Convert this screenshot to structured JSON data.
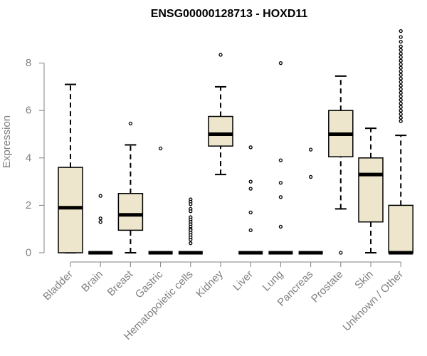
{
  "chart_data": {
    "type": "boxplot",
    "title": "ENSG00000128713 - HOXD11",
    "xlabel": "",
    "ylabel": "Expression",
    "ylim": [
      0,
      9.4
    ],
    "yticks": [
      0,
      2,
      4,
      6,
      8
    ],
    "box_fill": "#ede6cc",
    "categories": [
      "Bladder",
      "Brain",
      "Breast",
      "Gastric",
      "Hematopoietic cells",
      "Kidney",
      "Liver",
      "Lung",
      "Pancreas",
      "Prostate",
      "Skin",
      "Unknown / Other"
    ],
    "boxes": [
      {
        "name": "Bladder",
        "min": 0,
        "q1": 0,
        "median": 1.9,
        "q3": 3.6,
        "max": 7.1,
        "outliers": []
      },
      {
        "name": "Brain",
        "min": 0,
        "q1": 0,
        "median": 0,
        "q3": 0,
        "max": 0,
        "outliers": [
          2.4,
          1.45,
          1.3
        ]
      },
      {
        "name": "Breast",
        "min": 0,
        "q1": 0.95,
        "median": 1.6,
        "q3": 2.5,
        "max": 4.55,
        "outliers": [
          5.45
        ]
      },
      {
        "name": "Gastric",
        "min": 0,
        "q1": 0,
        "median": 0,
        "q3": 0,
        "max": 0,
        "outliers": [
          4.4
        ]
      },
      {
        "name": "Hematopoietic cells",
        "min": 0,
        "q1": 0,
        "median": 0,
        "q3": 0,
        "max": 0,
        "outliers": [
          2.25,
          2.15,
          2.05,
          1.85,
          1.75,
          1.5,
          1.4,
          1.3,
          1.2,
          1.1,
          1.0,
          0.95,
          0.85,
          0.75,
          0.65,
          0.55,
          0.4
        ]
      },
      {
        "name": "Kidney",
        "min": 3.3,
        "q1": 4.5,
        "median": 5.0,
        "q3": 5.75,
        "max": 7.0,
        "outliers": [
          8.35
        ]
      },
      {
        "name": "Liver",
        "min": 0,
        "q1": 0,
        "median": 0,
        "q3": 0,
        "max": 0,
        "outliers": [
          4.45,
          3.0,
          2.7,
          1.7,
          0.95
        ]
      },
      {
        "name": "Lung",
        "min": 0,
        "q1": 0,
        "median": 0,
        "q3": 0,
        "max": 0,
        "outliers": [
          8.0,
          3.9,
          2.95,
          2.35,
          1.1
        ]
      },
      {
        "name": "Pancreas",
        "min": 0,
        "q1": 0,
        "median": 0,
        "q3": 0,
        "max": 0,
        "outliers": [
          4.35,
          3.2
        ]
      },
      {
        "name": "Prostate",
        "min": 1.85,
        "q1": 4.05,
        "median": 5.0,
        "q3": 6.0,
        "max": 7.45,
        "outliers": [
          0
        ]
      },
      {
        "name": "Skin",
        "min": 0,
        "q1": 1.3,
        "median": 3.3,
        "q3": 4.0,
        "max": 5.25,
        "outliers": []
      },
      {
        "name": "Unknown / Other",
        "min": 0,
        "q1": 0,
        "median": 0,
        "q3": 2.0,
        "max": 4.95,
        "outliers": [
          9.35,
          9.1,
          8.9,
          8.7,
          8.55,
          8.4,
          8.25,
          8.1,
          7.95,
          7.8,
          7.65,
          7.5,
          7.35,
          7.2,
          7.05,
          6.9,
          6.75,
          6.6,
          6.45,
          6.3,
          6.15,
          6.0,
          5.85,
          5.7,
          5.55
        ]
      }
    ]
  }
}
